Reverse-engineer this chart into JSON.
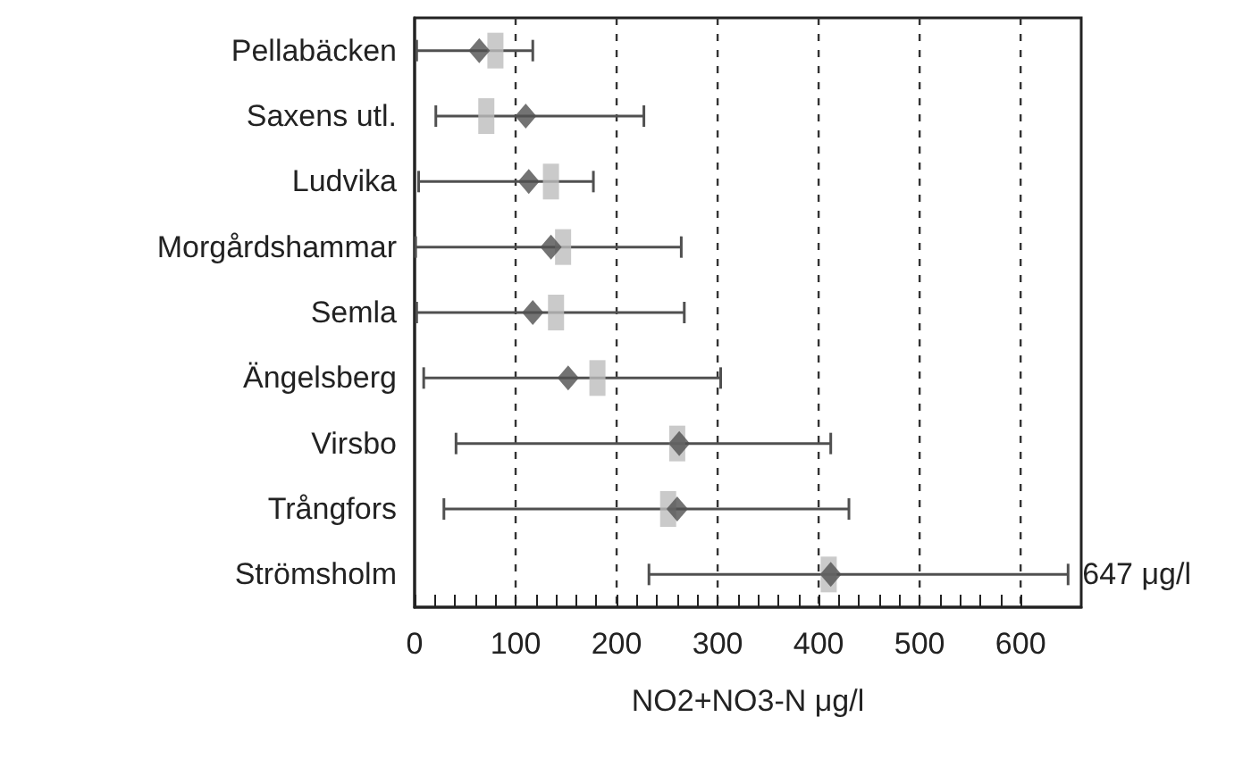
{
  "chart_data": {
    "type": "scatter",
    "orientation": "horizontal",
    "xlabel": "NO2+NO3-N μg/l",
    "categories": [
      "Pellabäcken",
      "Saxens utl.",
      "Ludvika",
      "Morgårdshammar",
      "Semla",
      "Ängelsberg",
      "Virsbo",
      "Trångfors",
      "Strömsholm"
    ],
    "series": [
      {
        "color": "#bdbdbd",
        "marker": "square",
        "values": [
          80,
          71,
          135,
          147,
          140,
          181,
          260,
          251,
          410
        ]
      },
      {
        "color": "#505050",
        "marker": "diamond",
        "values": [
          64,
          110,
          113,
          135,
          117,
          152,
          262,
          260,
          412
        ],
        "errors": [
          [
            2,
            117
          ],
          [
            21,
            227
          ],
          [
            4,
            177
          ],
          [
            1,
            264
          ],
          [
            2,
            267
          ],
          [
            9,
            303
          ],
          [
            41,
            412
          ],
          [
            29,
            430
          ],
          [
            232,
            647
          ]
        ]
      }
    ],
    "xlim": [
      0,
      660
    ],
    "xticks": [
      0,
      {
        "value": 20,
        "label": null
      },
      {
        "value": 40,
        "label": null
      },
      {
        "value": 60,
        "label": null
      },
      {
        "value": 80,
        "label": null
      },
      100,
      {
        "value": 120,
        "label": null
      },
      {
        "value": 140,
        "label": null
      },
      {
        "value": 160,
        "label": null
      },
      {
        "value": 180,
        "label": null
      },
      200,
      {
        "value": 220,
        "label": null
      },
      {
        "value": 240,
        "label": null
      },
      {
        "value": 260,
        "label": null
      },
      {
        "value": 280,
        "label": null
      },
      300,
      {
        "value": 320,
        "label": null
      },
      {
        "value": 340,
        "label": null
      },
      {
        "value": 360,
        "label": null
      },
      {
        "value": 380,
        "label": null
      },
      400,
      {
        "value": 420,
        "label": null
      },
      {
        "value": 440,
        "label": null
      },
      {
        "value": 460,
        "label": null
      },
      {
        "value": 480,
        "label": null
      },
      500,
      {
        "value": 520,
        "label": null
      },
      {
        "value": 540,
        "label": null
      },
      {
        "value": 560,
        "label": null
      },
      {
        "value": 580,
        "label": null
      },
      600
    ],
    "grid": "x",
    "annotations": [
      {
        "text": "647 μg/l",
        "x": 647,
        "y": "Strömsholm"
      }
    ]
  }
}
